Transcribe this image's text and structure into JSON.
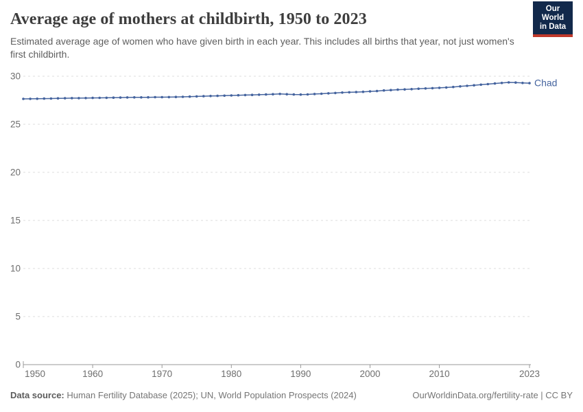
{
  "header": {
    "title": "Average age of mothers at childbirth, 1950 to 2023",
    "subtitle": "Estimated average age of women who have given birth in each year. This includes all births that year, not just women's first childbirth."
  },
  "logo": {
    "line1": "Our World",
    "line2": "in Data"
  },
  "footer": {
    "data_source_label": "Data source:",
    "data_source_text": " Human Fertility Database (2025); UN, World Population Prospects (2024)",
    "link_text": "OurWorldinData.org/fertility-rate | CC BY"
  },
  "colors": {
    "background": "#ffffff",
    "title": "#3d3d3d",
    "subtitle": "#5e5e5e",
    "footer": "#757575",
    "line": "#44639E",
    "grid": "#dcdcdc",
    "axis": "#999999",
    "tick_label": "#6e6e6e",
    "logo_bg": "#12294B",
    "logo_red": "#C0392B"
  },
  "chart_data": {
    "type": "line",
    "title": "Average age of mothers at childbirth, 1950 to 2023",
    "xlabel": "",
    "ylabel": "",
    "xlim": [
      1950,
      2023
    ],
    "ylim": [
      0,
      30
    ],
    "grid": "dashed-horizontal",
    "legend": "end-of-line-label",
    "xticks": [
      1950,
      1960,
      1970,
      1980,
      1990,
      2000,
      2010,
      2023
    ],
    "yticks": [
      0,
      5,
      10,
      15,
      20,
      25,
      30
    ],
    "x": [
      1950,
      1951,
      1952,
      1953,
      1954,
      1955,
      1956,
      1957,
      1958,
      1959,
      1960,
      1961,
      1962,
      1963,
      1964,
      1965,
      1966,
      1967,
      1968,
      1969,
      1970,
      1971,
      1972,
      1973,
      1974,
      1975,
      1976,
      1977,
      1978,
      1979,
      1980,
      1981,
      1982,
      1983,
      1984,
      1985,
      1986,
      1987,
      1988,
      1989,
      1990,
      1991,
      1992,
      1993,
      1994,
      1995,
      1996,
      1997,
      1998,
      1999,
      2000,
      2001,
      2002,
      2003,
      2004,
      2005,
      2006,
      2007,
      2008,
      2009,
      2010,
      2011,
      2012,
      2013,
      2014,
      2015,
      2016,
      2017,
      2018,
      2019,
      2020,
      2021,
      2022,
      2023
    ],
    "series": [
      {
        "name": "Chad",
        "color": "#44639E",
        "values": [
          27.64,
          27.65,
          27.66,
          27.67,
          27.68,
          27.7,
          27.71,
          27.72,
          27.72,
          27.73,
          27.74,
          27.75,
          27.76,
          27.77,
          27.78,
          27.79,
          27.8,
          27.8,
          27.81,
          27.82,
          27.82,
          27.83,
          27.84,
          27.86,
          27.88,
          27.9,
          27.92,
          27.94,
          27.96,
          27.98,
          28.0,
          28.02,
          28.04,
          28.06,
          28.08,
          28.1,
          28.13,
          28.16,
          28.13,
          28.1,
          28.09,
          28.11,
          28.15,
          28.18,
          28.22,
          28.26,
          28.3,
          28.33,
          28.35,
          28.38,
          28.42,
          28.46,
          28.52,
          28.56,
          28.6,
          28.63,
          28.66,
          28.7,
          28.73,
          28.76,
          28.79,
          28.83,
          28.88,
          28.94,
          29.0,
          29.06,
          29.12,
          29.18,
          29.24,
          29.3,
          29.36,
          29.34,
          29.3,
          29.28
        ]
      }
    ]
  }
}
